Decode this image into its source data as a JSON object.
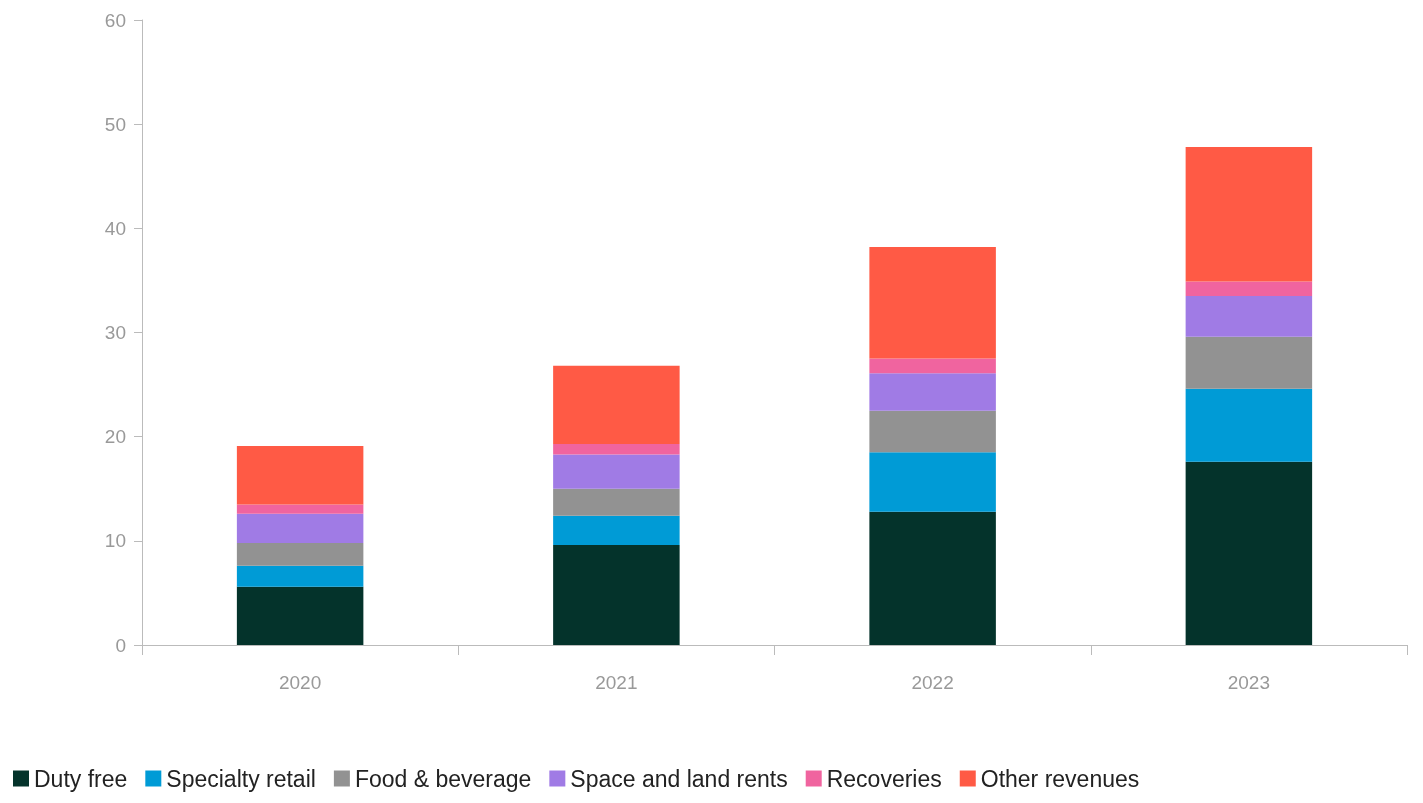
{
  "chart_data": {
    "type": "bar",
    "stacked": true,
    "categories": [
      "2020",
      "2021",
      "2022",
      "2023"
    ],
    "series": [
      {
        "name": "Duty free",
        "color": "#04332b",
        "values": [
          5.6,
          9.6,
          12.8,
          17.6
        ]
      },
      {
        "name": "Specialty retail",
        "color": "#009bd6",
        "values": [
          2.0,
          2.8,
          5.7,
          7.0
        ]
      },
      {
        "name": "Food & beverage",
        "color": "#929292",
        "values": [
          2.2,
          2.6,
          4.0,
          5.0
        ]
      },
      {
        "name": "Space and land rents",
        "color": "#a07be5",
        "values": [
          2.8,
          3.3,
          3.6,
          3.9
        ]
      },
      {
        "name": "Recoveries",
        "color": "#f0649f",
        "values": [
          0.9,
          1.0,
          1.4,
          1.4
        ]
      },
      {
        "name": "Other revenues",
        "color": "#ff5a45",
        "values": [
          5.6,
          7.5,
          10.7,
          12.9
        ]
      }
    ],
    "ylim": [
      0,
      60
    ],
    "yticks": [
      0,
      10,
      20,
      30,
      40,
      50,
      60
    ],
    "grid": false,
    "legend": "bottom"
  }
}
